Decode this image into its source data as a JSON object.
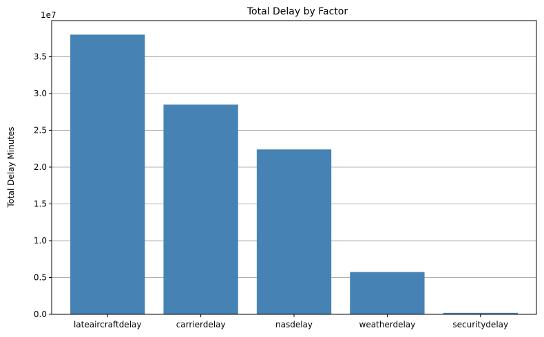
{
  "chart_data": {
    "type": "bar",
    "title": "Total Delay by Factor",
    "xlabel": "",
    "ylabel": "Total Delay Minutes",
    "offset_text": "1e7",
    "categories": [
      "lateaircraftdelay",
      "carrierdelay",
      "nasdelay",
      "weatherdelay",
      "securitydelay"
    ],
    "values": [
      38000000,
      28500000,
      22400000,
      5750000,
      200000
    ],
    "ylim": [
      0,
      39900000
    ],
    "yticks": [
      0,
      5000000,
      10000000,
      15000000,
      20000000,
      25000000,
      30000000,
      35000000
    ],
    "ytick_labels": [
      "0.0",
      "0.5",
      "1.0",
      "1.5",
      "2.0",
      "2.5",
      "3.0",
      "3.5"
    ],
    "grid": "y",
    "bar_color": "#4682b4",
    "grid_color": "#b0b0b0"
  }
}
